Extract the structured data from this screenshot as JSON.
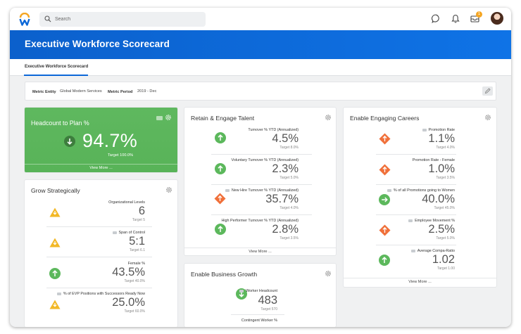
{
  "search": {
    "placeholder": "Search"
  },
  "notifications": {
    "inbox_count": "1"
  },
  "banner": {
    "title": "Executive Workforce Scorecard"
  },
  "tabs": [
    {
      "label": "Executive Workforce Scorecard"
    }
  ],
  "filters": {
    "entity_label": "Metric Entity",
    "entity_value": "Global Modern Services",
    "period_label": "Metric Period",
    "period_value": "2019 - Dec"
  },
  "headcount": {
    "title": "Headcount to Plan %",
    "value": "94.7%",
    "target": "Target  100.0%",
    "view_more": "View More ..."
  },
  "grow": {
    "title": "Grow Strategically",
    "rows": [
      {
        "label": "Organizational Levels",
        "value": "6",
        "target": "Target  5"
      },
      {
        "label": "Span of Control",
        "value": "5:1",
        "target": "Target  6.1"
      },
      {
        "label": "Female %",
        "value": "43.5%",
        "target": "Target  40.0%"
      },
      {
        "label": "% of EVP Positions with Successors Ready Now",
        "value": "25.0%",
        "target": "Target  60.0%"
      }
    ]
  },
  "retain": {
    "title": "Retain & Engage Talent",
    "rows": [
      {
        "label": "Turnover % YTD (Annualized)",
        "value": "4.5%",
        "target": "Target  8.0%"
      },
      {
        "label": "Voluntary Turnover % YTD (Annualized)",
        "value": "2.3%",
        "target": "Target  5.0%"
      },
      {
        "label": "New Hire Turnover % YTD (Annualized)",
        "value": "35.7%",
        "target": "Target  4.0%"
      },
      {
        "label": "High Performer Turnover % YTD (Annualized)",
        "value": "2.8%",
        "target": "Target  3.5%"
      }
    ],
    "view_more": "View More ..."
  },
  "growth": {
    "title": "Enable Business Growth",
    "rows": [
      {
        "label": "Worker Headcount",
        "value": "483",
        "target": "Target  570"
      },
      {
        "label": "Contingent Worker %"
      }
    ]
  },
  "careers": {
    "title": "Enable Engaging Careers",
    "rows": [
      {
        "label": "Promotion Rate",
        "value": "1.1%",
        "target": "Target  4.0%"
      },
      {
        "label": "Promotion Rate - Female",
        "value": "1.0%",
        "target": "Target  3.5%"
      },
      {
        "label": "% of all Promotions going to Women",
        "value": "40.0%",
        "target": "Target  45.0%"
      },
      {
        "label": "Employee Movement %",
        "value": "2.5%",
        "target": "Target  5.0%"
      },
      {
        "label": "Average Compa-Ratio",
        "value": "1.02",
        "target": "Target  1.00"
      }
    ],
    "view_more": "View More ..."
  },
  "colors": {
    "brand_blue": "#0b67d8",
    "good_green": "#5cb85c",
    "bad_orange": "#f0703a",
    "warn_yellow": "#f2b826"
  }
}
